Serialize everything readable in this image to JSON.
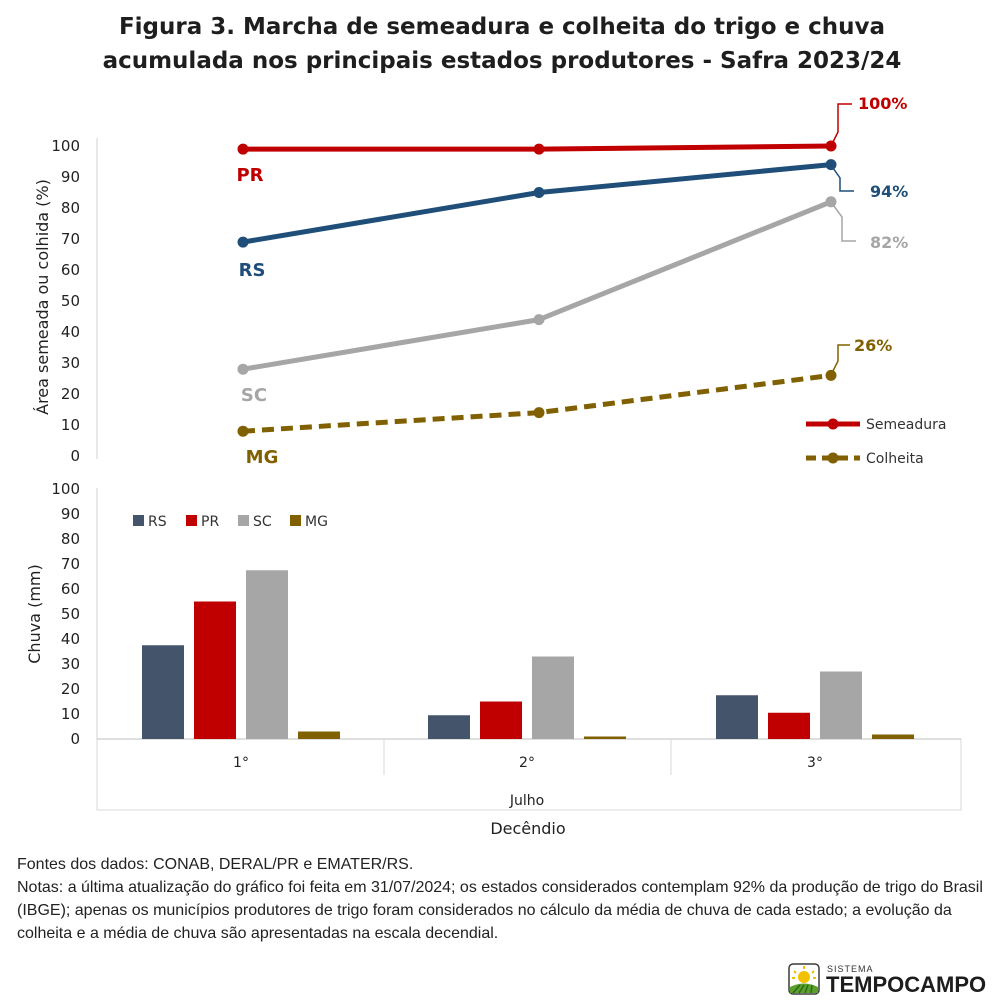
{
  "title_line1": "Figura 3. Marcha de semeadura e colheita do trigo e chuva",
  "title_line2": "acumulada nos principais estados produtores - Safra 2023/24",
  "footer": {
    "sources": "Fontes dos dados: CONAB, DERAL/PR e EMATER/RS.",
    "notes": "Notas: a última atualização do gráfico foi feita em 31/07/2024; os estados considerados contemplam 92% da produção de trigo do Brasil (IBGE); apenas os municípios produtores de trigo foram considerados no cálculo da média de chuva de cada estado; a evolução da colheita e a média de chuva são apresentadas na escala decendial."
  },
  "logo": {
    "small": "SISTEMA",
    "word": "TEMPOCAMPO"
  },
  "colors": {
    "RS": "#1f4e79",
    "PR": "#c00000",
    "SC": "#a6a6a6",
    "MG": "#806000",
    "RS_bar": "#44546a"
  },
  "chart_data": [
    {
      "type": "line",
      "ylabel": "Área semeada ou colhida (%)",
      "ylim": [
        0,
        100
      ],
      "yticks": [
        "0",
        "10",
        "20",
        "30",
        "40",
        "50",
        "60",
        "70",
        "80",
        "90",
        "100"
      ],
      "x": [
        "1°",
        "2°",
        "3°"
      ],
      "series": [
        {
          "name": "PR",
          "values": [
            99,
            99,
            100
          ],
          "style": "Semeadura",
          "end_label": "100%"
        },
        {
          "name": "RS",
          "values": [
            69,
            85,
            94
          ],
          "style": "Semeadura",
          "end_label": "94%"
        },
        {
          "name": "SC",
          "values": [
            28,
            44,
            82
          ],
          "style": "Semeadura",
          "end_label": "82%"
        },
        {
          "name": "MG",
          "values": [
            8,
            14,
            26
          ],
          "style": "Colheita",
          "end_label": "26%"
        }
      ],
      "legend": {
        "position": "bottom-right",
        "entries": [
          "Semeadura",
          "Colheita"
        ]
      },
      "grid": false
    },
    {
      "type": "bar",
      "ylabel": "Chuva (mm)",
      "ylim": [
        0,
        100
      ],
      "yticks": [
        "0",
        "10",
        "20",
        "30",
        "40",
        "50",
        "60",
        "70",
        "80",
        "90",
        "100"
      ],
      "categories": [
        "1°",
        "2°",
        "3°"
      ],
      "group_label": "Julho",
      "xlabel": "Decêndio",
      "series": [
        {
          "name": "RS",
          "values": [
            37.5,
            9.5,
            17.5
          ]
        },
        {
          "name": "PR",
          "values": [
            55,
            15,
            10.5
          ]
        },
        {
          "name": "SC",
          "values": [
            67.5,
            33,
            27
          ]
        },
        {
          "name": "MG",
          "values": [
            3,
            1,
            1.8
          ]
        }
      ],
      "legend": {
        "position": "top-left",
        "entries": [
          "RS",
          "PR",
          "SC",
          "MG"
        ]
      },
      "grid": false
    }
  ]
}
